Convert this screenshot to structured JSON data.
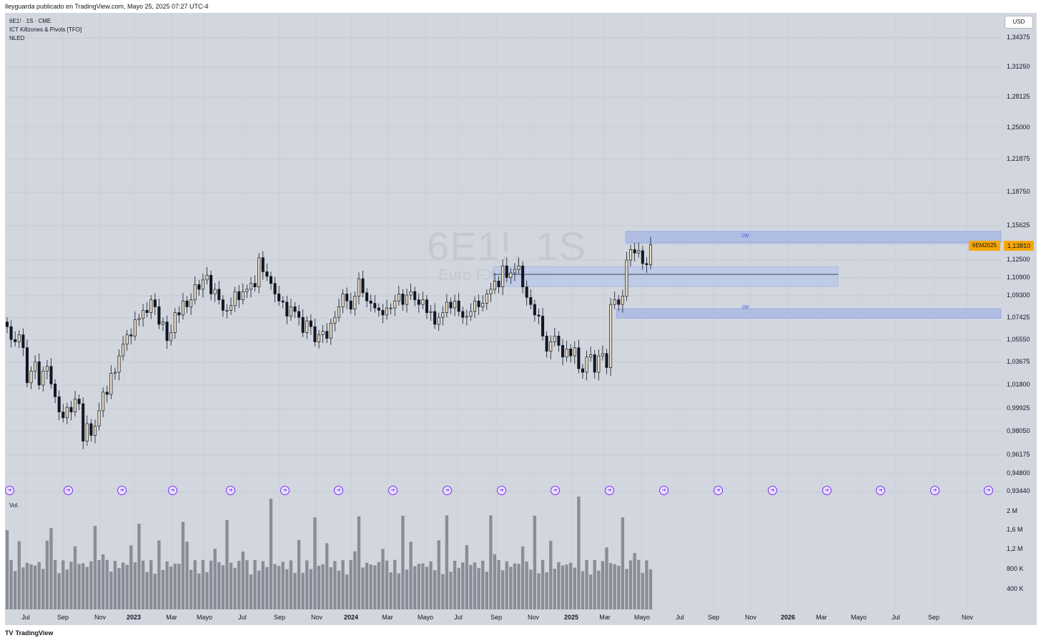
{
  "header": {
    "published": "lleyguarda publicado en TradingView.com, Mayo 25, 2025 07:27 UTC-4"
  },
  "legend": {
    "symbol": "6E1! · 1S · CME",
    "indicator1": "ICT Killzones & Pivots [TFO]",
    "indicator2": "NLED"
  },
  "watermark": {
    "symbol": "6E1!, 1S",
    "description": "Euro FX Futures"
  },
  "price_axis": {
    "currency": "USD",
    "labels": [
      "1,34375",
      "1,31250",
      "1,28125",
      "1,25000",
      "1,21875",
      "1,18750",
      "1,15625",
      "1,12500",
      "1,10900",
      "1,09300",
      "1,07425",
      "1,05550",
      "1,03675",
      "1,01800",
      "0,99925",
      "0,98050",
      "0,96175",
      "0,94800",
      "0,93440"
    ],
    "current_price": "1,13810",
    "current_symbol_tag": "6EM2025"
  },
  "volume": {
    "label": "Vol.",
    "axis_labels": [
      "2 M",
      "1,6 M",
      "1,2 M",
      "800 K",
      "400 K"
    ]
  },
  "time_axis": {
    "labels": [
      {
        "text": "Jul",
        "bold": false
      },
      {
        "text": "Sep",
        "bold": false
      },
      {
        "text": "Nov",
        "bold": false
      },
      {
        "text": "2023",
        "bold": true
      },
      {
        "text": "Mar",
        "bold": false
      },
      {
        "text": "Mayo",
        "bold": false
      },
      {
        "text": "Jul",
        "bold": false
      },
      {
        "text": "Sep",
        "bold": false
      },
      {
        "text": "Nov",
        "bold": false
      },
      {
        "text": "2024",
        "bold": true
      },
      {
        "text": "Mar",
        "bold": false
      },
      {
        "text": "Mayo",
        "bold": false
      },
      {
        "text": "Jul",
        "bold": false
      },
      {
        "text": "Sep",
        "bold": false
      },
      {
        "text": "Nov",
        "bold": false
      },
      {
        "text": "2025",
        "bold": true
      },
      {
        "text": "Mar",
        "bold": false
      },
      {
        "text": "Mayo",
        "bold": false
      },
      {
        "text": "Jul",
        "bold": false
      },
      {
        "text": "Sep",
        "bold": false
      },
      {
        "text": "Nov",
        "bold": false
      },
      {
        "text": "2026",
        "bold": true
      },
      {
        "text": "Mar",
        "bold": false
      },
      {
        "text": "Mayo",
        "bold": false
      },
      {
        "text": "Jul",
        "bold": false
      },
      {
        "text": "Sep",
        "bold": false
      },
      {
        "text": "Nov",
        "bold": false
      }
    ]
  },
  "zones": {
    "upper_label": "1W",
    "lower_label": "1W"
  },
  "event_icon": "arrow-right-circle-icon",
  "footer": {
    "brand": "TradingView",
    "logo_mark": "TV"
  },
  "colors": {
    "plot_background": "#d2d6df",
    "bull_candle": "#e8dcc2",
    "bear_candle": "#131722",
    "zone_fill": "#9aaee8",
    "volume_bar": "#8a8c96",
    "price_tag": "#f6a800",
    "event_icon": "#7b2ff7"
  },
  "chart_data": {
    "type": "candlestick",
    "timeframe": "1S",
    "closes": [
      1.068,
      1.057,
      1.055,
      1.061,
      1.05,
      1.02,
      1.03,
      1.038,
      1.018,
      1.03,
      1.034,
      1.019,
      1.008,
      0.995,
      0.99,
      0.999,
      0.995,
      1.006,
      1.002,
      0.97,
      0.985,
      0.975,
      0.983,
      0.996,
      1.012,
      1.01,
      1.028,
      1.029,
      1.043,
      1.053,
      1.061,
      1.06,
      1.074,
      1.075,
      1.082,
      1.08,
      1.091,
      1.085,
      1.07,
      1.072,
      1.056,
      1.063,
      1.08,
      1.078,
      1.09,
      1.085,
      1.091,
      1.104,
      1.1,
      1.108,
      1.112,
      1.096,
      1.1,
      1.091,
      1.082,
      1.082,
      1.086,
      1.098,
      1.091,
      1.098,
      1.1,
      1.105,
      1.102,
      1.127,
      1.115,
      1.111,
      1.105,
      1.096,
      1.09,
      1.089,
      1.077,
      1.085,
      1.081,
      1.076,
      1.063,
      1.073,
      1.068,
      1.055,
      1.061,
      1.064,
      1.058,
      1.071,
      1.076,
      1.085,
      1.096,
      1.09,
      1.083,
      1.094,
      1.109,
      1.097,
      1.09,
      1.088,
      1.084,
      1.082,
      1.078,
      1.084,
      1.084,
      1.09,
      1.096,
      1.087,
      1.095,
      1.098,
      1.091,
      1.087,
      1.091,
      1.08,
      1.081,
      1.07,
      1.076,
      1.08,
      1.089,
      1.084,
      1.09,
      1.081,
      1.076,
      1.077,
      1.081,
      1.09,
      1.085,
      1.088,
      1.096,
      1.1,
      1.107,
      1.102,
      1.12,
      1.11,
      1.114,
      1.117,
      1.12,
      1.102,
      1.093,
      1.087,
      1.078,
      1.077,
      1.06,
      1.047,
      1.055,
      1.06,
      1.052,
      1.042,
      1.049,
      1.043,
      1.05,
      1.032,
      1.029,
      1.042,
      1.044,
      1.029,
      1.043,
      1.045,
      1.033,
      1.087,
      1.091,
      1.087,
      1.094,
      1.125,
      1.134,
      1.131,
      1.133,
      1.122,
      1.121,
      1.138
    ]
  }
}
